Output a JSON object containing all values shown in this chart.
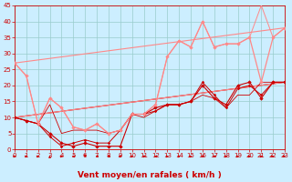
{
  "bg_color": "#cceeff",
  "grid_color": "#99cccc",
  "xlabel": "Vent moyen/en rafales ( km/h )",
  "xlabel_color": "#cc0000",
  "xlabel_fontsize": 6.5,
  "tick_color": "#cc0000",
  "tick_fontsize": 5.0,
  "xmin": 0,
  "xmax": 23,
  "ymin": 0,
  "ymax": 45,
  "yticks": [
    0,
    5,
    10,
    15,
    20,
    25,
    30,
    35,
    40,
    45
  ],
  "xticks": [
    0,
    1,
    2,
    3,
    4,
    5,
    6,
    7,
    8,
    9,
    10,
    11,
    12,
    13,
    14,
    15,
    16,
    17,
    18,
    19,
    20,
    21,
    22,
    23
  ],
  "series": [
    {
      "x": [
        0,
        1,
        2,
        3,
        4,
        5,
        6,
        7,
        8,
        9,
        10,
        11,
        12,
        13,
        14,
        15,
        16,
        17,
        18,
        19,
        20,
        21,
        22,
        23
      ],
      "y": [
        10,
        9,
        8,
        5,
        2,
        1,
        2,
        1,
        1,
        1,
        11,
        11,
        13,
        14,
        14,
        15,
        20,
        16,
        14,
        20,
        21,
        16,
        21,
        21
      ],
      "color": "#cc0000",
      "lw": 0.8,
      "marker": "D",
      "ms": 1.8,
      "zorder": 4
    },
    {
      "x": [
        0,
        1,
        2,
        3,
        4,
        5,
        6,
        7,
        8,
        9,
        10,
        11,
        12,
        13,
        14,
        15,
        16,
        17,
        18,
        19,
        20,
        21,
        22,
        23
      ],
      "y": [
        10,
        9,
        8,
        4,
        1,
        2,
        3,
        2,
        2,
        6,
        11,
        11,
        12,
        14,
        14,
        15,
        21,
        17,
        13,
        19,
        20,
        17,
        21,
        21
      ],
      "color": "#cc0000",
      "lw": 0.7,
      "marker": "P",
      "ms": 1.8,
      "zorder": 4
    },
    {
      "x": [
        0,
        23
      ],
      "y": [
        10,
        21
      ],
      "color": "#cc0000",
      "lw": 0.8,
      "marker": null,
      "ms": 0,
      "zorder": 3
    },
    {
      "x": [
        0,
        1,
        2,
        3,
        4,
        5,
        6,
        7,
        8,
        9,
        10,
        11,
        12,
        13,
        14,
        15,
        16,
        17,
        18,
        19,
        20,
        21,
        22,
        23
      ],
      "y": [
        27,
        23,
        8,
        16,
        13,
        7,
        6,
        8,
        5,
        6,
        11,
        11,
        14,
        29,
        34,
        32,
        40,
        32,
        33,
        33,
        35,
        21,
        35,
        38
      ],
      "color": "#ff8888",
      "lw": 0.9,
      "marker": "D",
      "ms": 1.8,
      "zorder": 4
    },
    {
      "x": [
        0,
        1,
        2,
        3,
        4,
        5,
        6,
        7,
        8,
        9,
        10,
        11,
        12,
        13,
        14,
        15,
        16,
        17,
        18,
        19,
        20,
        21,
        22,
        23
      ],
      "y": [
        27,
        23,
        8,
        16,
        13,
        7,
        6,
        8,
        5,
        6,
        11,
        11,
        14,
        29,
        34,
        32,
        40,
        32,
        33,
        33,
        35,
        45,
        35,
        38
      ],
      "color": "#ff8888",
      "lw": 0.7,
      "marker": null,
      "ms": 0,
      "zorder": 3
    },
    {
      "x": [
        0,
        23
      ],
      "y": [
        27,
        38
      ],
      "color": "#ff8888",
      "lw": 0.8,
      "marker": null,
      "ms": 0,
      "zorder": 3
    },
    {
      "x": [
        0,
        23
      ],
      "y": [
        10,
        21
      ],
      "color": "#ff8888",
      "lw": 0.8,
      "marker": null,
      "ms": 0,
      "zorder": 3
    },
    {
      "x": [
        0,
        1,
        2,
        3,
        4,
        5,
        6,
        7,
        8,
        9,
        10,
        11,
        12,
        13,
        14,
        15,
        16,
        17,
        18,
        19,
        20,
        21,
        22,
        23
      ],
      "y": [
        10,
        9,
        8,
        14,
        5,
        6,
        6,
        6,
        5,
        6,
        11,
        10,
        12,
        14,
        14,
        15,
        17,
        16,
        13,
        17,
        17,
        21,
        21,
        21
      ],
      "color": "#cc0000",
      "lw": 0.6,
      "marker": null,
      "ms": 0,
      "zorder": 3
    }
  ],
  "wind_angles": [
    0,
    0,
    0,
    90,
    0,
    180,
    270,
    200,
    200,
    0,
    0,
    60,
    200,
    0,
    0,
    0,
    60,
    60,
    0,
    0,
    0,
    0,
    330,
    330
  ]
}
